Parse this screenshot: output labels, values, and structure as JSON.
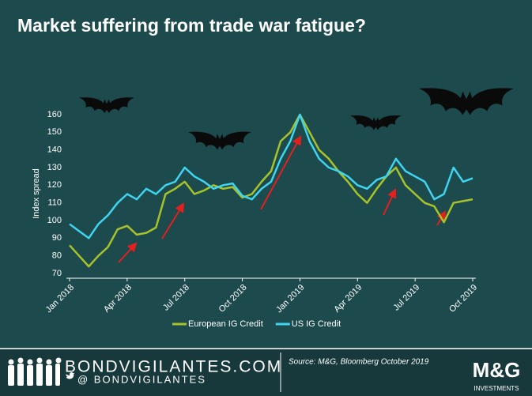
{
  "chart_data": {
    "type": "line",
    "title": "Market suffering from trade war fatigue?",
    "y_label": "Index spread",
    "categories": [
      "Jan 2018",
      null,
      null,
      null,
      null,
      null,
      "Apr 2018",
      null,
      null,
      null,
      null,
      null,
      "Jul 2018",
      null,
      null,
      null,
      null,
      null,
      "Oct 2018",
      null,
      null,
      null,
      null,
      null,
      "Jan 2019",
      null,
      null,
      null,
      null,
      null,
      "Apr 2019",
      null,
      null,
      null,
      null,
      null,
      "Jul 2019",
      null,
      null,
      null,
      null,
      null,
      "Oct 2019"
    ],
    "series": [
      {
        "name": "European IG Credit",
        "color": "#a8c32a",
        "values": [
          86,
          80,
          74,
          80,
          85,
          95,
          97,
          92,
          93,
          96,
          115,
          118,
          122,
          115,
          117,
          120,
          118,
          119,
          113,
          115,
          122,
          128,
          145,
          150,
          160,
          150,
          140,
          135,
          128,
          122,
          115,
          110,
          118,
          125,
          130,
          120,
          115,
          110,
          108,
          99,
          110,
          111,
          112
        ]
      },
      {
        "name": "US IG Credit",
        "color": "#3fd4f0",
        "values": [
          98,
          94,
          90,
          98,
          103,
          110,
          115,
          112,
          118,
          115,
          120,
          122,
          130,
          125,
          122,
          118,
          120,
          121,
          114,
          112,
          118,
          122,
          135,
          145,
          160,
          145,
          135,
          130,
          128,
          125,
          120,
          118,
          123,
          125,
          135,
          128,
          125,
          122,
          112,
          115,
          130,
          122,
          124
        ]
      }
    ],
    "ylim": [
      70,
      160
    ],
    "yticks": [
      70,
      80,
      90,
      100,
      110,
      120,
      130,
      140,
      150,
      160
    ],
    "grid": false,
    "legend": "bottom"
  },
  "footer": {
    "brand": "BONDVIGILANTES.COM",
    "twitter": "@ BONDVIGILANTES",
    "source": "Source: M&G, Bloomberg October 2019",
    "logo": "M&G",
    "logo_sub": "INVESTMENTS"
  }
}
